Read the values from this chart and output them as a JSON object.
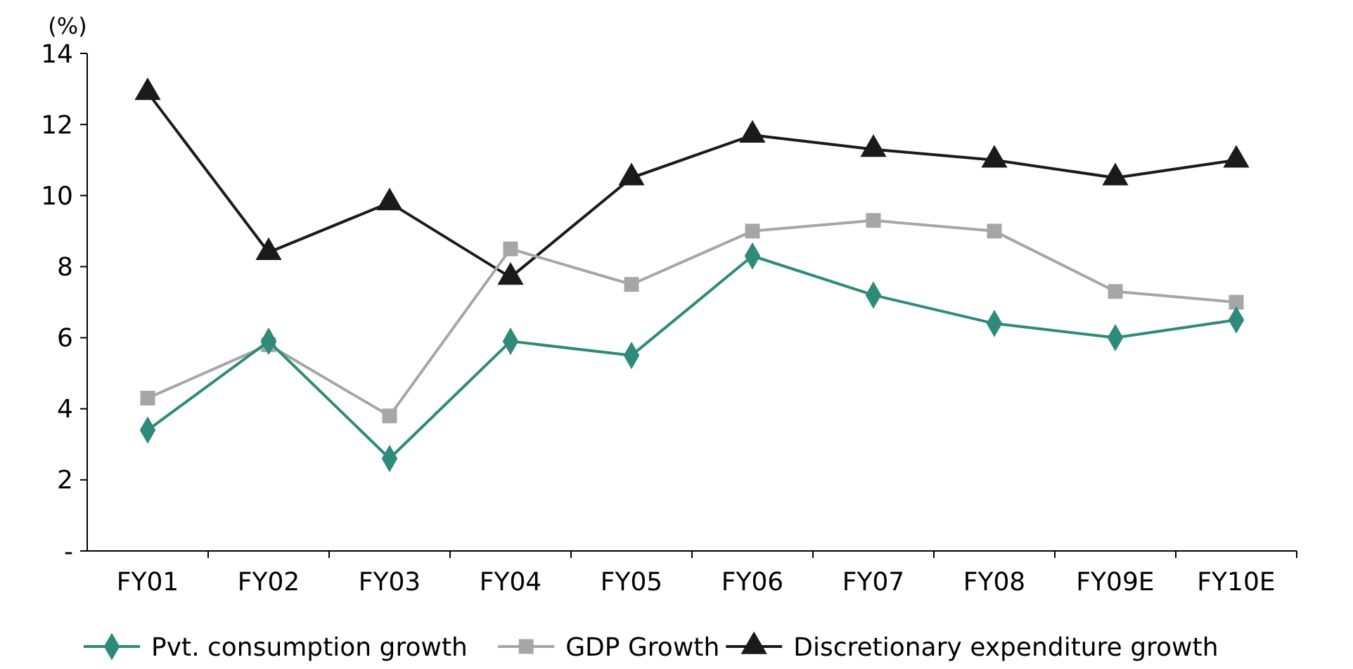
{
  "chart_data": {
    "type": "line",
    "ylabel": "(%)",
    "categories": [
      "FY01",
      "FY02",
      "FY03",
      "FY04",
      "FY05",
      "FY06",
      "FY07",
      "FY08",
      "FY09E",
      "FY10E"
    ],
    "series": [
      {
        "name": "Pvt. consumption growth",
        "color": "#2e8b7a",
        "marker": "diamond",
        "values": [
          3.4,
          5.9,
          2.6,
          5.9,
          5.5,
          8.3,
          7.2,
          6.4,
          6.0,
          6.5
        ]
      },
      {
        "name": "GDP Growth",
        "color": "#a6a6a6",
        "marker": "square",
        "values": [
          4.3,
          5.8,
          3.8,
          8.5,
          7.5,
          9.0,
          9.3,
          9.0,
          7.3,
          7.0
        ]
      },
      {
        "name": "Discretionary expenditure growth",
        "color": "#1a1a1a",
        "marker": "triangle",
        "values": [
          12.9,
          8.4,
          9.8,
          7.7,
          10.5,
          11.7,
          11.3,
          11.0,
          10.5,
          11.0
        ]
      }
    ],
    "ylim": [
      0,
      14
    ],
    "yticks": [
      {
        "value": 0,
        "label": "-"
      },
      2,
      4,
      6,
      8,
      10,
      12,
      14
    ],
    "grid": false,
    "legend": "bottom"
  }
}
